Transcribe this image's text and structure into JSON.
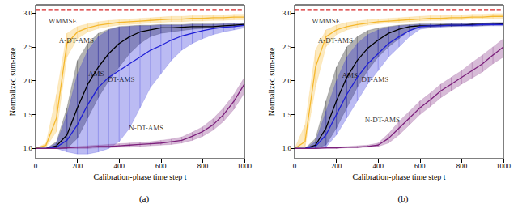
{
  "chart_data": [
    {
      "type": "line",
      "title": "(a)",
      "x_label": "Calibration-phase time step t",
      "y_label": "Normalized sum-rate",
      "xlim": [
        0,
        1000
      ],
      "xticks": [
        0,
        200,
        400,
        600,
        800,
        1000
      ],
      "ylim": [
        0.85,
        3.12
      ],
      "yticks": [
        {
          "value": 1.0,
          "label": "1.0"
        },
        {
          "value": 1.5,
          "label": "1.5"
        },
        {
          "value": 2.0,
          "label": "2.0"
        },
        {
          "value": 2.5,
          "label": "2.5"
        },
        {
          "value": 3.0,
          "label": "3.0"
        }
      ],
      "grid": false,
      "x": [
        0,
        50,
        100,
        150,
        200,
        250,
        300,
        350,
        400,
        450,
        500,
        550,
        600,
        650,
        700,
        750,
        800,
        850,
        900,
        950,
        1000
      ],
      "series": [
        {
          "name": "WMMSE",
          "color": "#d62728",
          "line_style": "dashed",
          "values": [
            3.05,
            3.05,
            3.05,
            3.05,
            3.05,
            3.05,
            3.05,
            3.05,
            3.05,
            3.05,
            3.05,
            3.05,
            3.05,
            3.05,
            3.05,
            3.05,
            3.05,
            3.05,
            3.05,
            3.05,
            3.05
          ]
        },
        {
          "name": "A-DT-AMS",
          "color": "#f5b82e",
          "line_style": "solid",
          "values": [
            1.0,
            1.05,
            1.45,
            2.55,
            2.72,
            2.78,
            2.82,
            2.84,
            2.86,
            2.87,
            2.88,
            2.89,
            2.9,
            2.91,
            2.91,
            2.92,
            2.92,
            2.93,
            2.93,
            2.94,
            2.94
          ],
          "lower": [
            1.0,
            1.02,
            1.25,
            2.35,
            2.62,
            2.72,
            2.77,
            2.8,
            2.82,
            2.83,
            2.84,
            2.85,
            2.86,
            2.87,
            2.87,
            2.88,
            2.88,
            2.89,
            2.89,
            2.9,
            2.9
          ],
          "upper": [
            1.0,
            1.08,
            1.8,
            2.7,
            2.8,
            2.84,
            2.87,
            2.89,
            2.9,
            2.91,
            2.92,
            2.93,
            2.94,
            2.95,
            2.95,
            2.96,
            2.96,
            2.97,
            2.97,
            2.98,
            2.98
          ]
        },
        {
          "name": "AMS",
          "color": "#000000",
          "line_style": "solid",
          "values": [
            1.0,
            1.0,
            1.04,
            1.2,
            1.6,
            1.95,
            2.2,
            2.4,
            2.55,
            2.65,
            2.72,
            2.75,
            2.78,
            2.78,
            2.79,
            2.8,
            2.8,
            2.8,
            2.81,
            2.82,
            2.83
          ],
          "lower": [
            1.0,
            1.0,
            1.0,
            1.0,
            1.15,
            1.45,
            1.75,
            2.0,
            2.2,
            2.4,
            2.55,
            2.65,
            2.7,
            2.72,
            2.74,
            2.76,
            2.77,
            2.78,
            2.79,
            2.8,
            2.81
          ],
          "upper": [
            1.0,
            1.0,
            1.1,
            1.6,
            2.3,
            2.55,
            2.7,
            2.76,
            2.8,
            2.81,
            2.82,
            2.82,
            2.83,
            2.83,
            2.83,
            2.84,
            2.84,
            2.84,
            2.84,
            2.85,
            2.85
          ]
        },
        {
          "name": "DT-AMS",
          "color": "#1f1fd6",
          "line_style": "solid",
          "values": [
            1.0,
            1.0,
            1.02,
            1.12,
            1.35,
            1.65,
            1.9,
            2.05,
            2.15,
            2.25,
            2.35,
            2.45,
            2.52,
            2.6,
            2.66,
            2.7,
            2.74,
            2.77,
            2.79,
            2.8,
            2.82
          ],
          "lower": [
            1.0,
            1.0,
            1.0,
            0.95,
            0.92,
            0.92,
            0.95,
            1.0,
            1.1,
            1.3,
            1.6,
            1.9,
            2.1,
            2.3,
            2.45,
            2.55,
            2.62,
            2.68,
            2.72,
            2.75,
            2.78
          ],
          "upper": [
            1.0,
            1.0,
            1.08,
            1.5,
            2.1,
            2.45,
            2.65,
            2.75,
            2.79,
            2.8,
            2.81,
            2.81,
            2.82,
            2.82,
            2.82,
            2.83,
            2.83,
            2.83,
            2.84,
            2.84,
            2.84
          ]
        },
        {
          "name": "N-DT-AMS",
          "color": "#7b1f7b",
          "line_style": "solid",
          "values": [
            1.0,
            1.0,
            1.0,
            1.01,
            1.02,
            1.02,
            1.03,
            1.03,
            1.04,
            1.05,
            1.06,
            1.07,
            1.08,
            1.1,
            1.12,
            1.18,
            1.25,
            1.35,
            1.5,
            1.7,
            1.95
          ],
          "lower": [
            1.0,
            1.0,
            1.0,
            1.0,
            1.0,
            1.0,
            1.01,
            1.01,
            1.02,
            1.02,
            1.03,
            1.04,
            1.05,
            1.06,
            1.08,
            1.12,
            1.18,
            1.27,
            1.4,
            1.58,
            1.82
          ],
          "upper": [
            1.0,
            1.0,
            1.0,
            1.02,
            1.03,
            1.04,
            1.05,
            1.06,
            1.07,
            1.08,
            1.09,
            1.1,
            1.12,
            1.14,
            1.17,
            1.24,
            1.32,
            1.44,
            1.6,
            1.8,
            2.05
          ]
        }
      ],
      "annotations": [
        {
          "text": "WMMSE",
          "x": 130,
          "y": 2.88
        },
        {
          "text": "A-DT-AMS",
          "x": 195,
          "y": 2.6
        },
        {
          "text": "AMS",
          "x": 290,
          "y": 2.1
        },
        {
          "text": "DT-AMS",
          "x": 410,
          "y": 2.02
        },
        {
          "text": "N-DT-AMS",
          "x": 530,
          "y": 1.3
        }
      ]
    },
    {
      "type": "line",
      "title": "(b)",
      "x_label": "Calibration-phase time step t",
      "y_label": "Normalized sum-rate",
      "xlim": [
        0,
        1000
      ],
      "xticks": [
        0,
        200,
        400,
        600,
        800,
        1000
      ],
      "ylim": [
        0.85,
        3.12
      ],
      "yticks": [
        {
          "value": 1.0,
          "label": "1.0"
        },
        {
          "value": 1.5,
          "label": "1.5"
        },
        {
          "value": 2.0,
          "label": "2.0"
        },
        {
          "value": 2.5,
          "label": "2.5"
        },
        {
          "value": 3.0,
          "label": "3.0"
        }
      ],
      "grid": false,
      "x": [
        0,
        50,
        100,
        150,
        200,
        250,
        300,
        350,
        400,
        450,
        500,
        550,
        600,
        650,
        700,
        750,
        800,
        850,
        900,
        950,
        1000
      ],
      "series": [
        {
          "name": "WMMSE",
          "color": "#d62728",
          "line_style": "dashed",
          "values": [
            3.05,
            3.05,
            3.05,
            3.05,
            3.05,
            3.05,
            3.05,
            3.05,
            3.05,
            3.05,
            3.05,
            3.05,
            3.05,
            3.05,
            3.05,
            3.05,
            3.05,
            3.05,
            3.05,
            3.05,
            3.05
          ]
        },
        {
          "name": "A-DT-AMS",
          "color": "#f5b82e",
          "line_style": "solid",
          "values": [
            1.0,
            1.1,
            2.2,
            2.65,
            2.75,
            2.8,
            2.83,
            2.85,
            2.87,
            2.88,
            2.89,
            2.9,
            2.91,
            2.92,
            2.92,
            2.93,
            2.93,
            2.94,
            2.94,
            2.95,
            2.95
          ],
          "lower": [
            1.0,
            1.02,
            1.9,
            2.5,
            2.68,
            2.75,
            2.79,
            2.82,
            2.84,
            2.85,
            2.86,
            2.87,
            2.88,
            2.89,
            2.89,
            2.9,
            2.9,
            2.91,
            2.91,
            2.92,
            2.92
          ],
          "upper": [
            1.0,
            1.35,
            2.45,
            2.75,
            2.82,
            2.86,
            2.88,
            2.9,
            2.91,
            2.92,
            2.93,
            2.94,
            2.95,
            2.96,
            2.96,
            2.97,
            2.97,
            2.98,
            2.98,
            2.99,
            2.99
          ]
        },
        {
          "name": "AMS",
          "color": "#000000",
          "line_style": "solid",
          "values": [
            1.0,
            1.0,
            1.05,
            1.3,
            1.7,
            2.05,
            2.3,
            2.48,
            2.6,
            2.7,
            2.76,
            2.8,
            2.81,
            2.81,
            2.82,
            2.82,
            2.82,
            2.83,
            2.83,
            2.83,
            2.84
          ],
          "lower": [
            1.0,
            1.0,
            1.0,
            1.05,
            1.3,
            1.6,
            1.9,
            2.15,
            2.35,
            2.5,
            2.62,
            2.74,
            2.78,
            2.79,
            2.8,
            2.8,
            2.81,
            2.81,
            2.81,
            2.82,
            2.82
          ],
          "upper": [
            1.0,
            1.0,
            1.15,
            1.7,
            2.2,
            2.5,
            2.65,
            2.74,
            2.78,
            2.8,
            2.82,
            2.83,
            2.84,
            2.84,
            2.84,
            2.85,
            2.85,
            2.85,
            2.85,
            2.86,
            2.86
          ]
        },
        {
          "name": "DT-AMS",
          "color": "#1f1fd6",
          "line_style": "solid",
          "values": [
            1.0,
            1.0,
            1.03,
            1.2,
            1.5,
            1.8,
            2.05,
            2.25,
            2.4,
            2.55,
            2.65,
            2.74,
            2.8,
            2.81,
            2.81,
            2.82,
            2.82,
            2.82,
            2.83,
            2.83,
            2.83
          ],
          "lower": [
            1.0,
            1.0,
            1.0,
            1.02,
            1.2,
            1.45,
            1.7,
            1.95,
            2.15,
            2.35,
            2.5,
            2.65,
            2.76,
            2.78,
            2.79,
            2.8,
            2.8,
            2.8,
            2.81,
            2.81,
            2.81
          ],
          "upper": [
            1.0,
            1.0,
            1.1,
            1.55,
            2.0,
            2.35,
            2.55,
            2.68,
            2.75,
            2.79,
            2.81,
            2.82,
            2.83,
            2.83,
            2.83,
            2.84,
            2.84,
            2.84,
            2.85,
            2.85,
            2.85
          ]
        },
        {
          "name": "N-DT-AMS",
          "color": "#7b1f7b",
          "line_style": "solid",
          "values": [
            1.0,
            1.0,
            1.0,
            1.01,
            1.01,
            1.02,
            1.02,
            1.03,
            1.05,
            1.15,
            1.3,
            1.45,
            1.6,
            1.72,
            1.85,
            1.95,
            2.05,
            2.15,
            2.25,
            2.38,
            2.5
          ],
          "lower": [
            1.0,
            1.0,
            1.0,
            1.0,
            1.0,
            1.01,
            1.01,
            1.02,
            1.03,
            1.08,
            1.2,
            1.35,
            1.5,
            1.62,
            1.75,
            1.85,
            1.95,
            2.04,
            2.13,
            2.25,
            2.35
          ],
          "upper": [
            1.0,
            1.0,
            1.0,
            1.02,
            1.02,
            1.03,
            1.04,
            1.05,
            1.08,
            1.22,
            1.4,
            1.55,
            1.7,
            1.82,
            1.95,
            2.05,
            2.15,
            2.27,
            2.38,
            2.5,
            2.62
          ]
        }
      ],
      "annotations": [
        {
          "text": "WMMSE",
          "x": 150,
          "y": 2.88
        },
        {
          "text": "A-DT-AMS",
          "x": 195,
          "y": 2.6
        },
        {
          "text": "AMS",
          "x": 265,
          "y": 2.08
        },
        {
          "text": "DT-AMS",
          "x": 385,
          "y": 2.02
        },
        {
          "text": "N-DT-AMS",
          "x": 420,
          "y": 1.42
        }
      ]
    }
  ]
}
